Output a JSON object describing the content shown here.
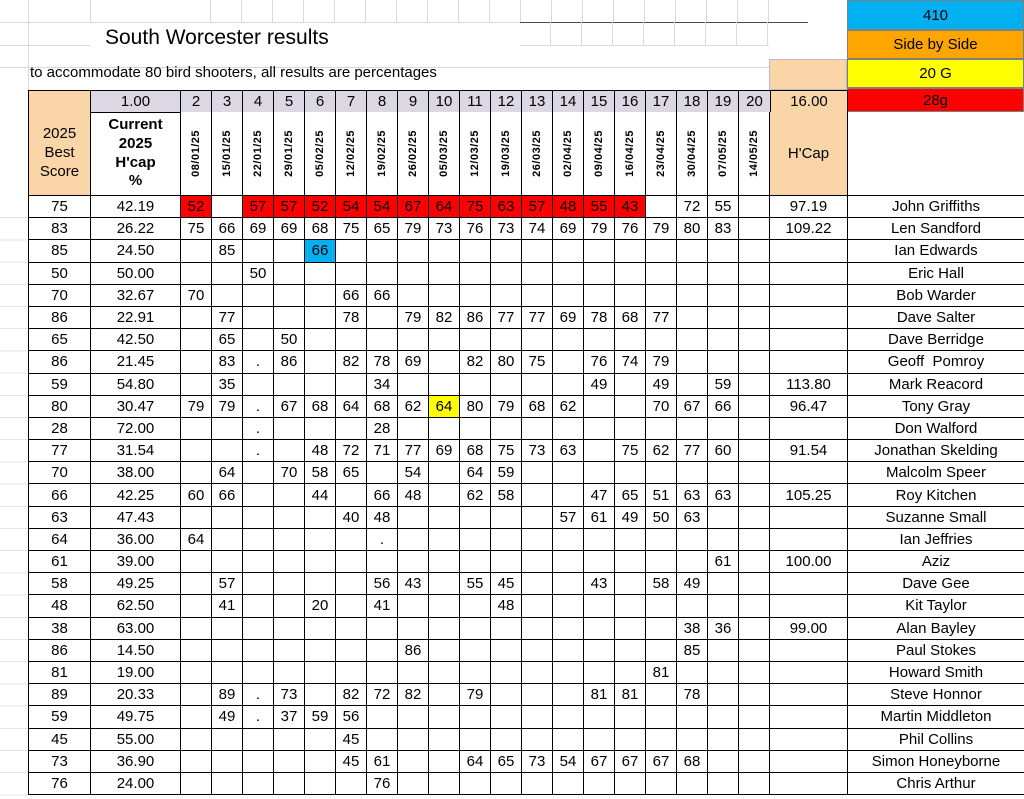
{
  "title": "South Worcester results",
  "subtitle": "to accommodate 80 bird shooters, all results are percentages",
  "colors": {
    "cyan": "#00B0F0",
    "orange": "#FFA500",
    "yellow": "#FFFF00",
    "red": "#FF0000",
    "peach": "#FAD5A8",
    "lavender": "#DBD8E3"
  },
  "corner_cells": [
    {
      "label": "410",
      "color": "#00B0F0"
    },
    {
      "label": "Side by Side",
      "color": "#FFA500"
    },
    {
      "label": "20 G",
      "color": "#FFFF00"
    },
    {
      "label": "28g",
      "color": "#FF0000"
    }
  ],
  "header": {
    "left_value": "1.00",
    "col_numbers": [
      "2",
      "3",
      "4",
      "5",
      "6",
      "7",
      "8",
      "9",
      "10",
      "11",
      "12",
      "13",
      "14",
      "15",
      "16",
      "17",
      "18",
      "19",
      "20"
    ],
    "right_value": "16.00",
    "best_score": "2025\nBest\nScore",
    "current": "Current\n2025\nH'cap\n%",
    "dates": [
      "08/01/25",
      "15/01/25",
      "22/01/25",
      "29/01/25",
      "05/02/25",
      "12/02/25",
      "19/02/25",
      "26/02/25",
      "05/03/25",
      "12/03/25",
      "19/03/25",
      "26/03/25",
      "02/04/25",
      "09/04/25",
      "16/04/25",
      "23/04/25",
      "30/04/25",
      "07/05/25",
      "14/05/25"
    ],
    "hcap_label": "H'Cap"
  },
  "rows": [
    {
      "name": "John Griffiths",
      "best": "75",
      "pct": "42.19",
      "hcap": "97.19",
      "scores": [
        "52",
        "",
        "57",
        "57",
        "52",
        "54",
        "54",
        "67",
        "64",
        "75",
        "63",
        "57",
        "48",
        "55",
        "43",
        "",
        "72",
        "55",
        ""
      ],
      "hl": {
        "red": [
          0,
          2,
          3,
          4,
          5,
          6,
          7,
          8,
          9,
          10,
          11,
          12,
          13,
          14
        ]
      }
    },
    {
      "name": "Len Sandford",
      "best": "83",
      "pct": "26.22",
      "hcap": "109.22",
      "scores": [
        "75",
        "66",
        "69",
        "69",
        "68",
        "75",
        "65",
        "79",
        "73",
        "76",
        "73",
        "74",
        "69",
        "79",
        "76",
        "79",
        "80",
        "83",
        ""
      ]
    },
    {
      "name": "Ian Edwards",
      "best": "85",
      "pct": "24.50",
      "hcap": "",
      "scores": [
        "",
        "85",
        "",
        "",
        "66",
        "",
        "",
        "",
        "",
        "",
        "",
        "",
        "",
        "",
        "",
        "",
        "",
        "",
        ""
      ],
      "hl": {
        "cyan": [
          4
        ]
      }
    },
    {
      "name": "Eric Hall",
      "best": "50",
      "pct": "50.00",
      "hcap": "",
      "scores": [
        "",
        "",
        "50",
        "",
        "",
        "",
        "",
        "",
        "",
        "",
        "",
        "",
        "",
        "",
        "",
        "",
        "",
        "",
        ""
      ]
    },
    {
      "name": "Bob Warder",
      "best": "70",
      "pct": "32.67",
      "hcap": "",
      "scores": [
        "70",
        "",
        "",
        "",
        "",
        "66",
        "66",
        "",
        "",
        "",
        "",
        "",
        "",
        "",
        "",
        "",
        "",
        "",
        ""
      ]
    },
    {
      "name": "Dave Salter",
      "best": "86",
      "pct": "22.91",
      "hcap": "",
      "scores": [
        "",
        "77",
        "",
        "",
        "",
        "78",
        "",
        "79",
        "82",
        "86",
        "77",
        "77",
        "69",
        "78",
        "68",
        "77",
        "",
        "",
        ""
      ]
    },
    {
      "name": "Dave Berridge",
      "best": "65",
      "pct": "42.50",
      "hcap": "",
      "scores": [
        "",
        "65",
        "",
        "50",
        "",
        "",
        "",
        "",
        "",
        "",
        "",
        "",
        "",
        "",
        "",
        "",
        "",
        "",
        ""
      ]
    },
    {
      "name": "Geoff  Pomroy",
      "best": "86",
      "pct": "21.45",
      "hcap": "",
      "scores": [
        "",
        "83",
        ".",
        "86",
        "",
        "82",
        "78",
        "69",
        "",
        "82",
        "80",
        "75",
        "",
        "76",
        "74",
        "79",
        "",
        "",
        ""
      ]
    },
    {
      "name": "Mark Reacord",
      "best": "59",
      "pct": "54.80",
      "hcap": "113.80",
      "scores": [
        "",
        "35",
        "",
        "",
        "",
        "",
        "34",
        "",
        "",
        "",
        "",
        "",
        "",
        "49",
        "",
        "49",
        "",
        "59",
        ""
      ]
    },
    {
      "name": "Tony Gray",
      "best": "80",
      "pct": "30.47",
      "hcap": "96.47",
      "scores": [
        "79",
        "79",
        ".",
        "67",
        "68",
        "64",
        "68",
        "62",
        "64",
        "80",
        "79",
        "68",
        "62",
        "",
        "",
        "70",
        "67",
        "66",
        ""
      ],
      "hl": {
        "yellow": [
          8
        ]
      }
    },
    {
      "name": "Don Walford",
      "best": "28",
      "pct": "72.00",
      "hcap": "",
      "scores": [
        "",
        "",
        ".",
        "",
        "",
        "",
        "28",
        "",
        "",
        "",
        "",
        "",
        "",
        "",
        "",
        "",
        "",
        "",
        ""
      ]
    },
    {
      "name": "Jonathan Skelding",
      "best": "77",
      "pct": "31.54",
      "hcap": "91.54",
      "scores": [
        "",
        "",
        ".",
        "",
        "48",
        "72",
        "71",
        "77",
        "69",
        "68",
        "75",
        "73",
        "63",
        "",
        "75",
        "62",
        "77",
        "60",
        ""
      ]
    },
    {
      "name": "Malcolm Speer",
      "best": "70",
      "pct": "38.00",
      "hcap": "",
      "scores": [
        "",
        "64",
        "",
        "70",
        "58",
        "65",
        "",
        "54",
        "",
        "64",
        "59",
        "",
        "",
        "",
        "",
        "",
        "",
        "",
        ""
      ]
    },
    {
      "name": "Roy Kitchen",
      "best": "66",
      "pct": "42.25",
      "hcap": "105.25",
      "scores": [
        "60",
        "66",
        "",
        "",
        "44",
        "",
        "66",
        "48",
        "",
        "62",
        "58",
        "",
        "",
        "47",
        "65",
        "51",
        "63",
        "63",
        ""
      ]
    },
    {
      "name": "Suzanne Small",
      "best": "63",
      "pct": "47.43",
      "hcap": "",
      "scores": [
        "",
        "",
        "",
        "",
        "",
        "40",
        "48",
        "",
        "",
        "",
        "",
        "",
        "57",
        "61",
        "49",
        "50",
        "63",
        "",
        ""
      ]
    },
    {
      "name": "Ian Jeffries",
      "best": "64",
      "pct": "36.00",
      "hcap": "",
      "scores": [
        "64",
        "",
        "",
        "",
        "",
        "",
        ".",
        "",
        "",
        "",
        "",
        "",
        "",
        "",
        "",
        "",
        "",
        "",
        ""
      ]
    },
    {
      "name": "Aziz",
      "best": "61",
      "pct": "39.00",
      "hcap": "100.00",
      "scores": [
        "",
        "",
        "",
        "",
        "",
        "",
        "",
        "",
        "",
        "",
        "",
        "",
        "",
        "",
        "",
        "",
        "",
        "61",
        ""
      ]
    },
    {
      "name": "Dave Gee",
      "best": "58",
      "pct": "49.25",
      "hcap": "",
      "scores": [
        "",
        "57",
        "",
        "",
        "",
        "",
        "56",
        "43",
        "",
        "55",
        "45",
        "",
        "",
        "43",
        "",
        "58",
        "49",
        "",
        ""
      ]
    },
    {
      "name": "Kit Taylor",
      "best": "48",
      "pct": "62.50",
      "hcap": "",
      "scores": [
        "",
        "41",
        "",
        "",
        "20",
        "",
        "41",
        "",
        "",
        "",
        "48",
        "",
        "",
        "",
        "",
        "",
        "",
        "",
        ""
      ]
    },
    {
      "name": "Alan Bayley",
      "best": "38",
      "pct": "63.00",
      "hcap": "99.00",
      "scores": [
        "",
        "",
        "",
        "",
        "",
        "",
        "",
        "",
        "",
        "",
        "",
        "",
        "",
        "",
        "",
        "",
        "38",
        "36",
        ""
      ]
    },
    {
      "name": "Paul Stokes",
      "best": "86",
      "pct": "14.50",
      "hcap": "",
      "scores": [
        "",
        "",
        "",
        "",
        "",
        "",
        "",
        "86",
        "",
        "",
        "",
        "",
        "",
        "",
        "",
        "",
        "85",
        "",
        ""
      ]
    },
    {
      "name": "Howard Smith",
      "best": "81",
      "pct": "19.00",
      "hcap": "",
      "scores": [
        "",
        "",
        "",
        "",
        "",
        "",
        "",
        "",
        "",
        "",
        "",
        "",
        "",
        "",
        "",
        "81",
        "",
        "",
        ""
      ]
    },
    {
      "name": "Steve Honnor",
      "best": "89",
      "pct": "20.33",
      "hcap": "",
      "scores": [
        "",
        "89",
        ".",
        "73",
        "",
        "82",
        "72",
        "82",
        "",
        "79",
        "",
        "",
        "",
        "81",
        "81",
        "",
        "78",
        "",
        ""
      ]
    },
    {
      "name": "Martin Middleton",
      "best": "59",
      "pct": "49.75",
      "hcap": "",
      "scores": [
        "",
        "49",
        ".",
        "37",
        "59",
        "56",
        "",
        "",
        "",
        "",
        "",
        "",
        "",
        "",
        "",
        "",
        "",
        "",
        ""
      ]
    },
    {
      "name": "Phil Collins",
      "best": "45",
      "pct": "55.00",
      "hcap": "",
      "scores": [
        "",
        "",
        "",
        "",
        "",
        "45",
        "",
        "",
        "",
        "",
        "",
        "",
        "",
        "",
        "",
        "",
        "",
        "",
        ""
      ]
    },
    {
      "name": "Simon Honeyborne",
      "best": "73",
      "pct": "36.90",
      "hcap": "",
      "scores": [
        "",
        "",
        "",
        "",
        "",
        "45",
        "61",
        "",
        "",
        "64",
        "65",
        "73",
        "54",
        "67",
        "67",
        "67",
        "68",
        "",
        ""
      ]
    },
    {
      "name": "Chris Arthur",
      "best": "76",
      "pct": "24.00",
      "hcap": "",
      "scores": [
        "",
        "",
        "",
        "",
        "",
        "",
        "76",
        "",
        "",
        "",
        "",
        "",
        "",
        "",
        "",
        "",
        "",
        "",
        ""
      ]
    }
  ]
}
